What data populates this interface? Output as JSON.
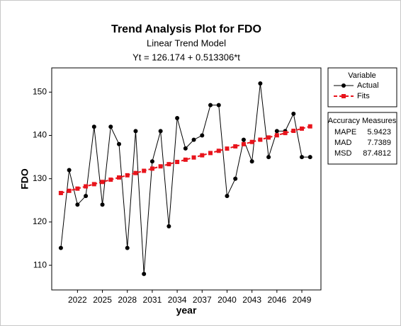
{
  "chart_data": {
    "type": "line",
    "title": "Trend Analysis Plot for FDO",
    "subtitle": "Linear Trend Model",
    "equation": "Yt = 126.174 + 0.513306*t",
    "x_label": "year",
    "y_label": "FDO",
    "x": [
      2020,
      2021,
      2022,
      2023,
      2024,
      2025,
      2026,
      2027,
      2028,
      2029,
      2030,
      2031,
      2032,
      2033,
      2034,
      2035,
      2036,
      2037,
      2038,
      2039,
      2040,
      2041,
      2042,
      2043,
      2044,
      2045,
      2046,
      2047,
      2048,
      2049,
      2050
    ],
    "series": [
      {
        "name": "Actual",
        "color": "#000000",
        "marker": "circle",
        "dashed": false,
        "values": [
          114,
          132,
          124,
          126,
          142,
          124,
          142,
          138,
          114,
          141,
          108,
          134,
          141,
          119,
          144,
          137,
          139,
          140,
          147,
          147,
          126,
          130,
          139,
          134,
          152,
          135,
          141,
          141,
          145,
          135,
          135
        ]
      },
      {
        "name": "Fits",
        "color": "#e8141c",
        "marker": "square",
        "dashed": true,
        "values": [
          126.69,
          127.2,
          127.71,
          128.23,
          128.74,
          129.25,
          129.77,
          130.28,
          130.79,
          131.31,
          131.82,
          132.33,
          132.85,
          133.36,
          133.87,
          134.39,
          134.9,
          135.41,
          135.93,
          136.44,
          136.95,
          137.47,
          137.98,
          138.49,
          139.01,
          139.52,
          140.03,
          140.55,
          141.06,
          141.57,
          142.09
        ]
      }
    ],
    "xlim": [
      2018.9,
      2051.3
    ],
    "ylim": [
      104.3,
      155.6
    ],
    "xticks": [
      2022,
      2025,
      2028,
      2031,
      2034,
      2037,
      2040,
      2043,
      2046,
      2049
    ],
    "yticks": [
      110,
      120,
      130,
      140,
      150
    ],
    "grid": false,
    "legend_title": "Variable",
    "legend_position": "right",
    "accuracy": {
      "title": "Accuracy Measures",
      "rows": [
        [
          "MAPE",
          5.9423
        ],
        [
          "MAD",
          7.7389
        ],
        [
          "MSD",
          87.4812
        ]
      ]
    }
  }
}
